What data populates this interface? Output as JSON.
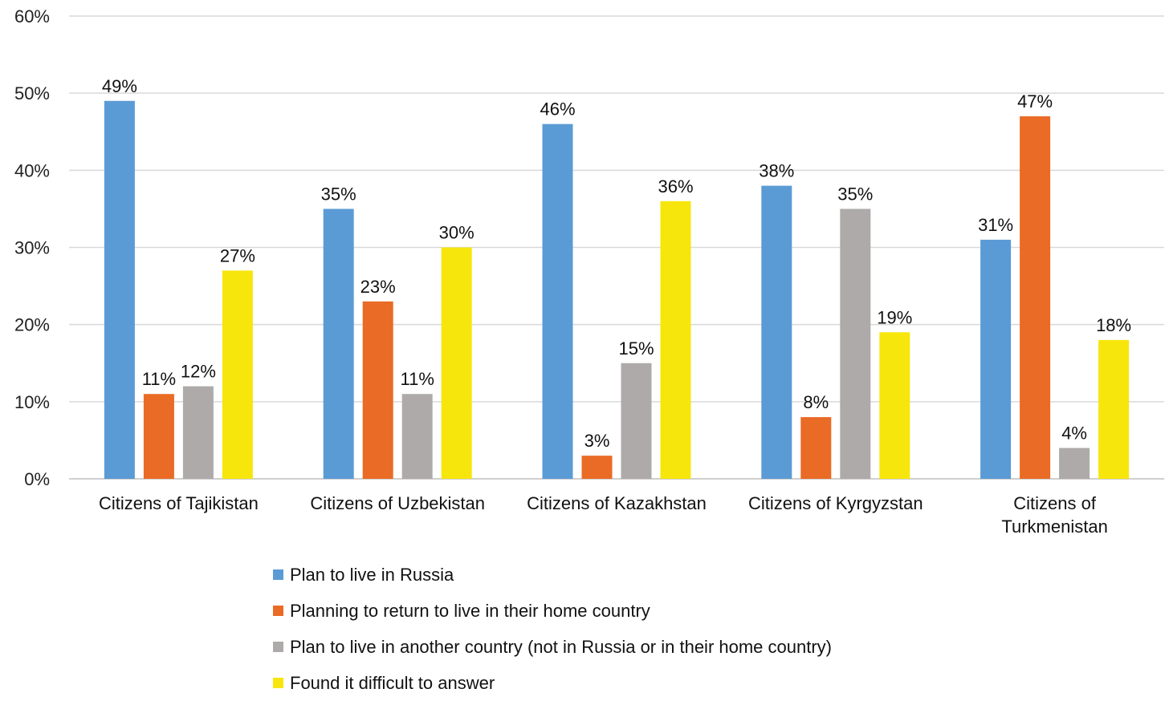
{
  "chart_data": {
    "type": "bar",
    "categories": [
      [
        "Citizens of Tajikistan"
      ],
      [
        "Citizens of Uzbekistan"
      ],
      [
        "Citizens of Kazakhstan"
      ],
      [
        "Citizens of Kyrgyzstan"
      ],
      [
        "Citizens of",
        "Turkmenistan"
      ]
    ],
    "series": [
      {
        "name": "Plan to live in Russia",
        "color": "#5b9bd5",
        "values": [
          49,
          35,
          46,
          38,
          31
        ]
      },
      {
        "name": "Planning to return to live in their home country",
        "color": "#e96b25",
        "values": [
          11,
          23,
          3,
          8,
          47
        ]
      },
      {
        "name": "Plan to live in another country (not in Russia or in their home country)",
        "color": "#aeaaaa",
        "values": [
          12,
          11,
          15,
          35,
          4
        ]
      },
      {
        "name": "Found it difficult to answer",
        "color": "#f7e60b",
        "values": [
          27,
          30,
          36,
          19,
          18
        ]
      }
    ],
    "ylim": [
      0,
      60
    ],
    "yticks": [
      "0%",
      "10%",
      "20%",
      "30%",
      "40%",
      "50%",
      "60%"
    ],
    "value_suffix": "%",
    "grid": true,
    "legend_position": "bottom"
  }
}
